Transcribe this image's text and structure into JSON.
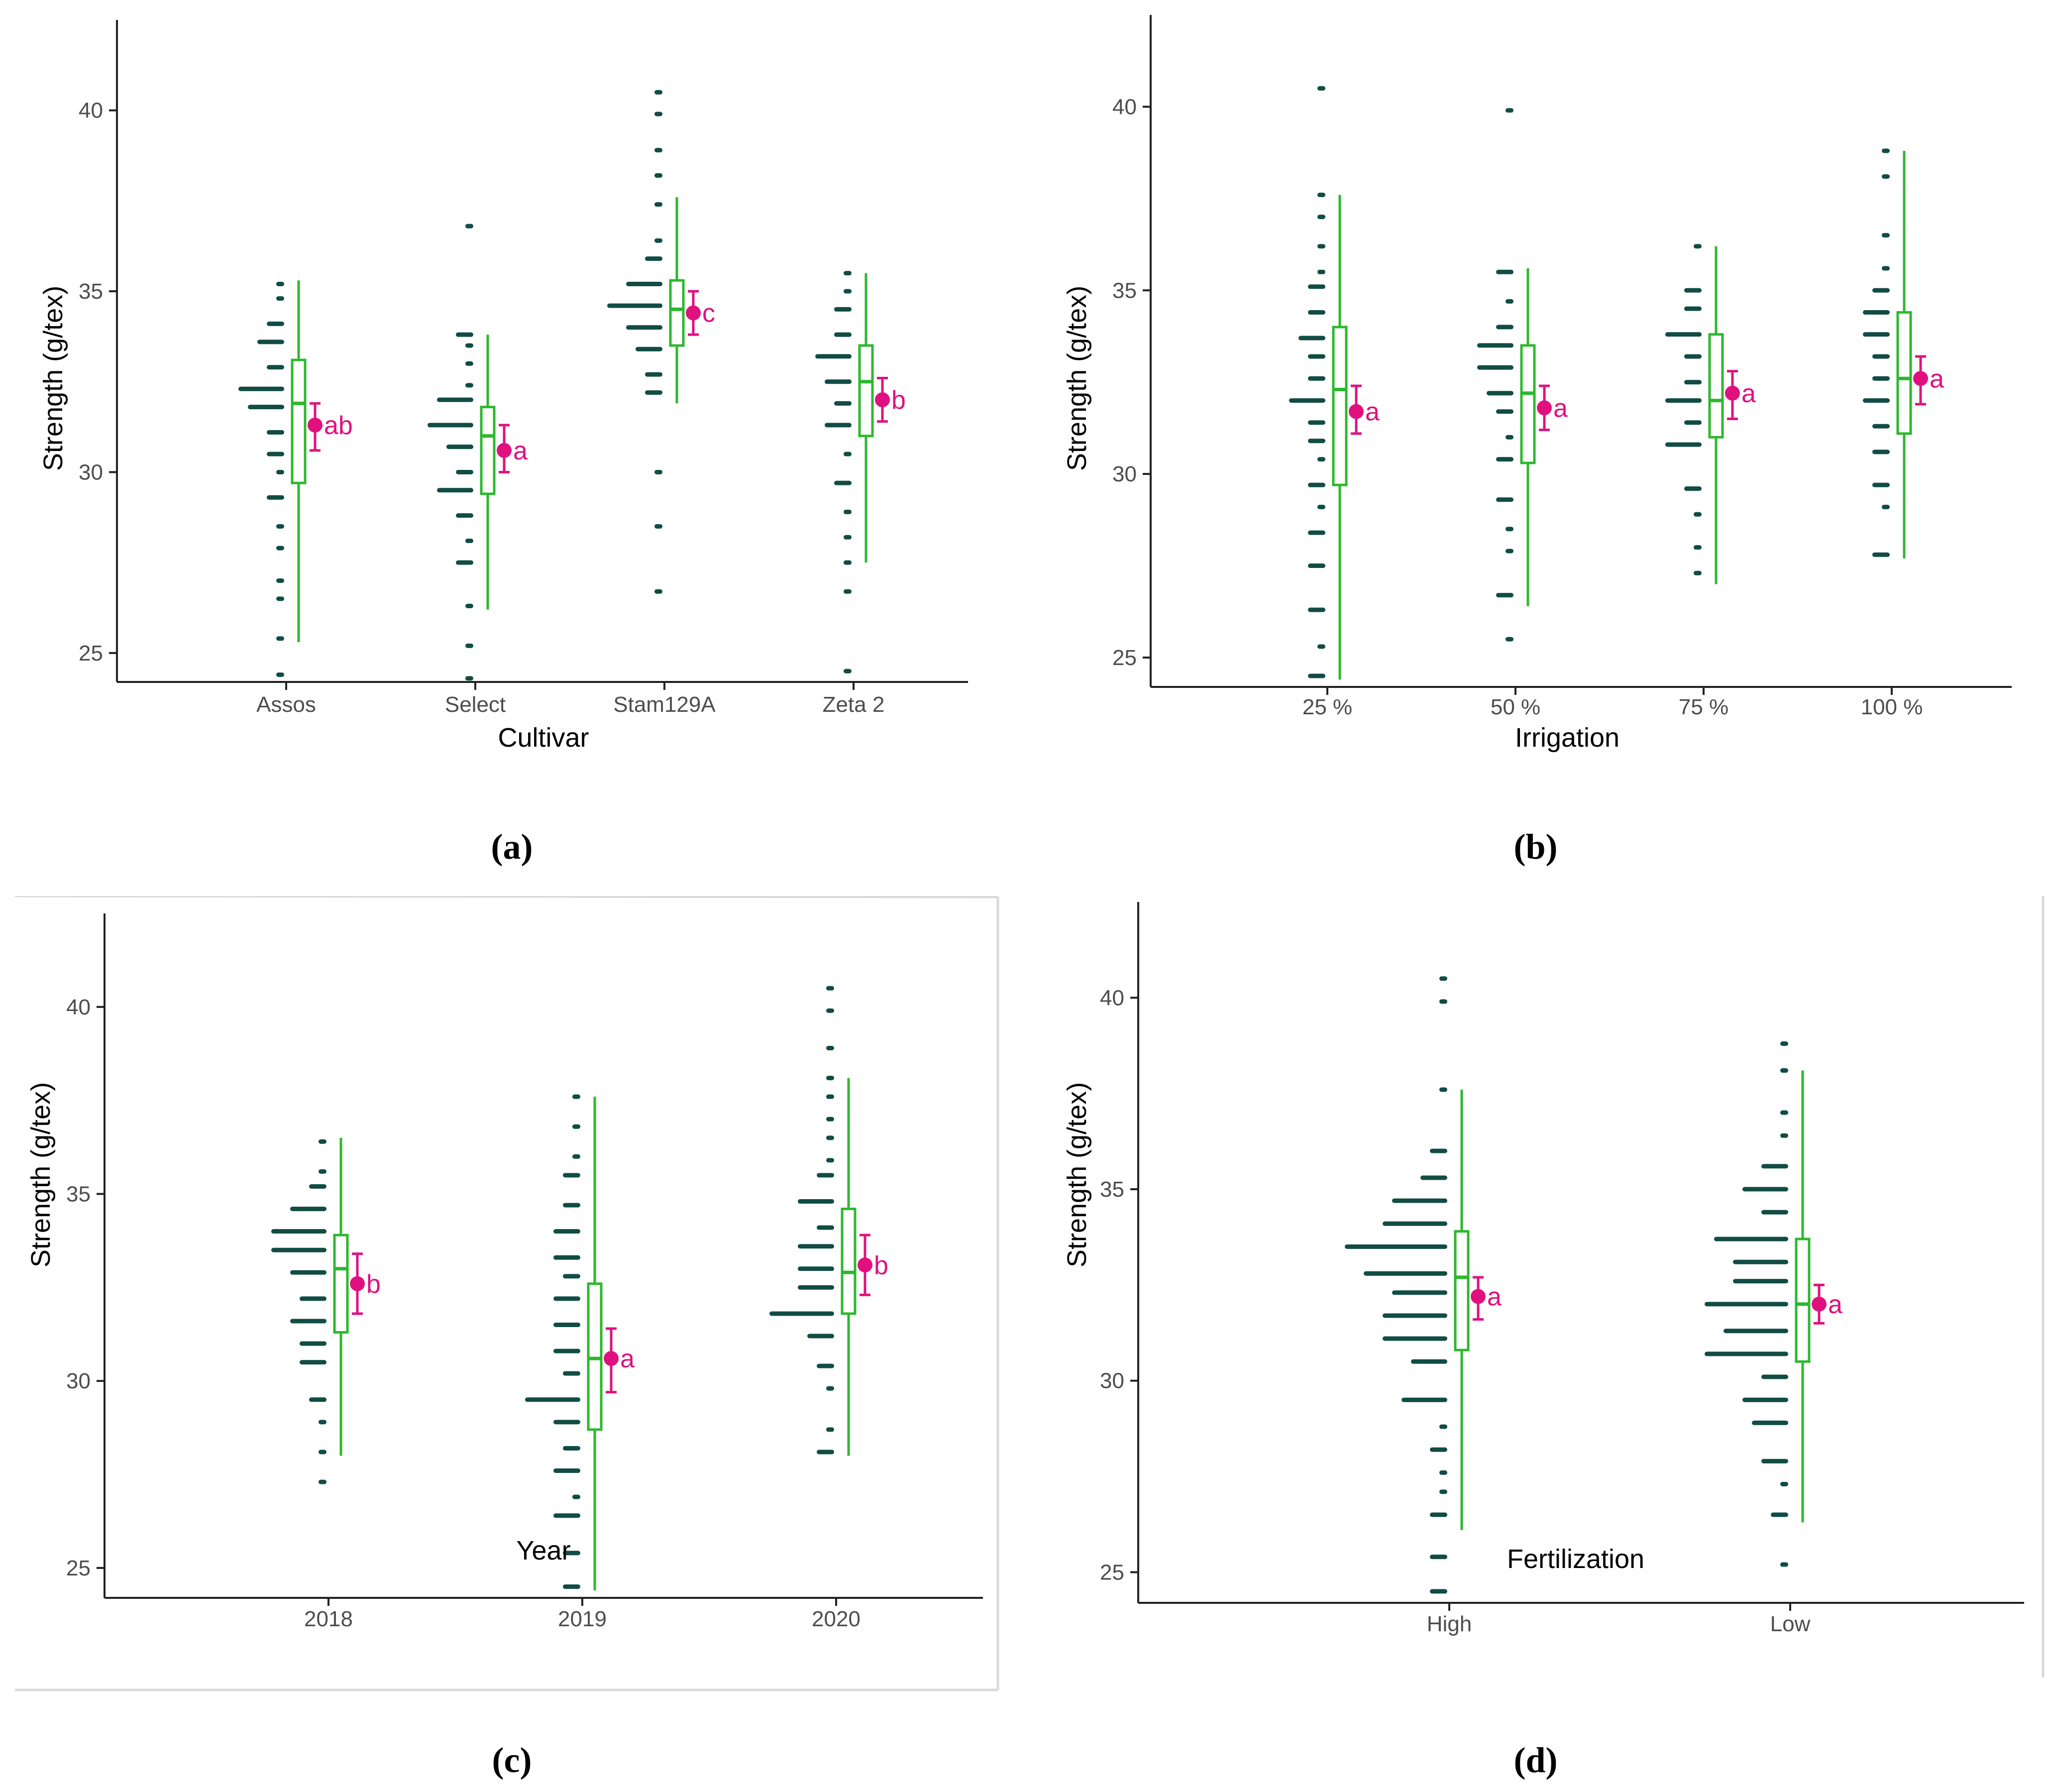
{
  "colors": {
    "dots": "#114d44",
    "box": "#2db82d",
    "mean": "#e0117f",
    "axis": "#222222"
  },
  "chart_data": [
    {
      "type": "raincloud",
      "panel": "a",
      "caption": "(a)",
      "xlabel": "Cultivar",
      "ylabel": "Strength (g/tex)",
      "ylim": [
        24.2,
        42.5
      ],
      "yticks": [
        25,
        30,
        35,
        40
      ],
      "categories": [
        {
          "name": "Assos",
          "median": 31.9,
          "q1": 29.7,
          "q3": 33.1,
          "whisker_low": 25.3,
          "whisker_high": 35.3,
          "mean": 31.3,
          "ci_low": 30.6,
          "ci_high": 31.9,
          "letter": "ab",
          "dots": [
            [
              35.2,
              1
            ],
            [
              34.8,
              1
            ],
            [
              34.1,
              2
            ],
            [
              33.6,
              3
            ],
            [
              32.9,
              2
            ],
            [
              32.3,
              5
            ],
            [
              31.8,
              4
            ],
            [
              31.1,
              2
            ],
            [
              30.5,
              2
            ],
            [
              30.0,
              1
            ],
            [
              29.3,
              2
            ],
            [
              28.5,
              1
            ],
            [
              27.9,
              1
            ],
            [
              27.0,
              1
            ],
            [
              26.5,
              1
            ],
            [
              25.4,
              1
            ],
            [
              24.4,
              1
            ]
          ]
        },
        {
          "name": "Select",
          "median": 31.0,
          "q1": 29.4,
          "q3": 31.8,
          "whisker_low": 26.2,
          "whisker_high": 33.8,
          "mean": 30.6,
          "ci_low": 30.0,
          "ci_high": 31.3,
          "letter": "a",
          "dots": [
            [
              36.8,
              1
            ],
            [
              33.8,
              2
            ],
            [
              33.5,
              1
            ],
            [
              33.0,
              1
            ],
            [
              32.4,
              1
            ],
            [
              32.0,
              4
            ],
            [
              31.3,
              5
            ],
            [
              30.7,
              3
            ],
            [
              30.0,
              2
            ],
            [
              29.5,
              4
            ],
            [
              28.8,
              2
            ],
            [
              28.1,
              1
            ],
            [
              27.5,
              2
            ],
            [
              26.3,
              1
            ],
            [
              25.2,
              1
            ],
            [
              24.3,
              1
            ]
          ]
        },
        {
          "name": "Stam129A",
          "median": 34.5,
          "q1": 33.5,
          "q3": 35.3,
          "whisker_low": 31.9,
          "whisker_high": 37.6,
          "mean": 34.4,
          "ci_low": 33.8,
          "ci_high": 35.0,
          "letter": "c",
          "dots": [
            [
              40.5,
              1
            ],
            [
              39.9,
              1
            ],
            [
              38.9,
              1
            ],
            [
              38.2,
              1
            ],
            [
              37.4,
              1
            ],
            [
              36.4,
              1
            ],
            [
              35.9,
              2
            ],
            [
              35.2,
              4
            ],
            [
              34.6,
              6
            ],
            [
              34.0,
              4
            ],
            [
              33.4,
              3
            ],
            [
              32.7,
              2
            ],
            [
              32.2,
              2
            ],
            [
              30.0,
              1
            ],
            [
              28.5,
              1
            ],
            [
              26.7,
              1
            ]
          ]
        },
        {
          "name": "Zeta 2",
          "median": 32.5,
          "q1": 31.0,
          "q3": 33.5,
          "whisker_low": 27.5,
          "whisker_high": 35.5,
          "mean": 32.0,
          "ci_low": 31.4,
          "ci_high": 32.6,
          "letter": "b",
          "dots": [
            [
              35.5,
              1
            ],
            [
              35.0,
              1
            ],
            [
              34.5,
              2
            ],
            [
              33.8,
              2
            ],
            [
              33.2,
              4
            ],
            [
              32.5,
              3
            ],
            [
              31.9,
              2
            ],
            [
              31.3,
              3
            ],
            [
              30.5,
              1
            ],
            [
              29.7,
              2
            ],
            [
              28.9,
              1
            ],
            [
              28.2,
              1
            ],
            [
              27.5,
              1
            ],
            [
              26.7,
              1
            ],
            [
              24.5,
              1
            ]
          ]
        }
      ]
    },
    {
      "type": "raincloud",
      "panel": "b",
      "caption": "(b)",
      "xlabel": "Irrigation",
      "ylabel": "Strength (g/tex)",
      "ylim": [
        24.2,
        42.5
      ],
      "yticks": [
        25,
        30,
        35,
        40
      ],
      "categories": [
        {
          "name": "25 %",
          "median": 32.3,
          "q1": 29.7,
          "q3": 34.0,
          "whisker_low": 24.4,
          "whisker_high": 37.6,
          "mean": 31.7,
          "ci_low": 31.1,
          "ci_high": 32.4,
          "letter": "a",
          "dots": [
            [
              40.5,
              1
            ],
            [
              37.6,
              1
            ],
            [
              37.0,
              1
            ],
            [
              36.2,
              1
            ],
            [
              35.5,
              1
            ],
            [
              35.1,
              2
            ],
            [
              34.4,
              2
            ],
            [
              33.7,
              3
            ],
            [
              33.2,
              2
            ],
            [
              32.6,
              2
            ],
            [
              32.0,
              4
            ],
            [
              31.4,
              2
            ],
            [
              30.9,
              2
            ],
            [
              30.4,
              1
            ],
            [
              29.7,
              2
            ],
            [
              29.1,
              1
            ],
            [
              28.4,
              2
            ],
            [
              27.5,
              2
            ],
            [
              26.3,
              2
            ],
            [
              25.3,
              1
            ],
            [
              24.5,
              2
            ]
          ]
        },
        {
          "name": "50 %",
          "median": 32.2,
          "q1": 30.3,
          "q3": 33.5,
          "whisker_low": 26.4,
          "whisker_high": 35.6,
          "mean": 31.8,
          "ci_low": 31.2,
          "ci_high": 32.4,
          "letter": "a",
          "dots": [
            [
              39.9,
              1
            ],
            [
              35.5,
              2
            ],
            [
              34.7,
              1
            ],
            [
              34.0,
              2
            ],
            [
              33.5,
              4
            ],
            [
              32.9,
              4
            ],
            [
              32.2,
              3
            ],
            [
              31.7,
              2
            ],
            [
              31.0,
              1
            ],
            [
              30.4,
              2
            ],
            [
              29.3,
              2
            ],
            [
              28.5,
              1
            ],
            [
              27.9,
              1
            ],
            [
              26.7,
              2
            ],
            [
              25.5,
              1
            ]
          ]
        },
        {
          "name": "75 %",
          "median": 32.0,
          "q1": 31.0,
          "q3": 33.8,
          "whisker_low": 27.0,
          "whisker_high": 36.2,
          "mean": 32.2,
          "ci_low": 31.5,
          "ci_high": 32.8,
          "letter": "a",
          "dots": [
            [
              36.2,
              1
            ],
            [
              35.0,
              2
            ],
            [
              34.5,
              2
            ],
            [
              33.8,
              4
            ],
            [
              33.2,
              2
            ],
            [
              32.5,
              2
            ],
            [
              32.0,
              4
            ],
            [
              31.4,
              2
            ],
            [
              30.8,
              4
            ],
            [
              29.6,
              2
            ],
            [
              28.9,
              1
            ],
            [
              28.0,
              1
            ],
            [
              27.3,
              1
            ]
          ]
        },
        {
          "name": "100 %",
          "median": 32.6,
          "q1": 31.1,
          "q3": 34.4,
          "whisker_low": 27.7,
          "whisker_high": 38.8,
          "mean": 32.6,
          "ci_low": 31.9,
          "ci_high": 33.2,
          "letter": "a",
          "dots": [
            [
              38.8,
              1
            ],
            [
              38.1,
              1
            ],
            [
              36.5,
              1
            ],
            [
              35.6,
              1
            ],
            [
              35.0,
              2
            ],
            [
              34.4,
              3
            ],
            [
              33.8,
              3
            ],
            [
              33.2,
              2
            ],
            [
              32.6,
              2
            ],
            [
              32.0,
              3
            ],
            [
              31.3,
              2
            ],
            [
              30.6,
              2
            ],
            [
              29.7,
              2
            ],
            [
              29.1,
              1
            ],
            [
              27.8,
              2
            ]
          ]
        }
      ]
    },
    {
      "type": "raincloud",
      "panel": "c",
      "caption": "(c)",
      "xlabel": "Year",
      "ylabel": "Strength (g/tex)",
      "ylim": [
        24.2,
        42.5
      ],
      "yticks": [
        25,
        30,
        35,
        40
      ],
      "categories": [
        {
          "name": "2018",
          "median": 33.0,
          "q1": 31.3,
          "q3": 33.9,
          "whisker_low": 28.0,
          "whisker_high": 36.5,
          "mean": 32.6,
          "ci_low": 31.8,
          "ci_high": 33.4,
          "letter": "b",
          "dots": [
            [
              36.4,
              1
            ],
            [
              35.6,
              1
            ],
            [
              35.2,
              2
            ],
            [
              34.6,
              4
            ],
            [
              34.0,
              6
            ],
            [
              33.5,
              6
            ],
            [
              32.9,
              4
            ],
            [
              32.2,
              3
            ],
            [
              31.6,
              4
            ],
            [
              31.0,
              3
            ],
            [
              30.5,
              3
            ],
            [
              29.5,
              2
            ],
            [
              28.9,
              1
            ],
            [
              28.1,
              1
            ],
            [
              27.3,
              1
            ]
          ]
        },
        {
          "name": "2019",
          "median": 30.6,
          "q1": 28.7,
          "q3": 32.6,
          "whisker_low": 24.4,
          "whisker_high": 37.6,
          "mean": 30.6,
          "ci_low": 29.7,
          "ci_high": 31.4,
          "letter": "a",
          "dots": [
            [
              37.6,
              1
            ],
            [
              36.8,
              1
            ],
            [
              36.0,
              1
            ],
            [
              35.5,
              2
            ],
            [
              34.7,
              2
            ],
            [
              34.0,
              3
            ],
            [
              33.3,
              3
            ],
            [
              32.8,
              2
            ],
            [
              32.2,
              3
            ],
            [
              31.5,
              3
            ],
            [
              30.8,
              3
            ],
            [
              30.2,
              2
            ],
            [
              29.5,
              6
            ],
            [
              28.9,
              3
            ],
            [
              28.2,
              2
            ],
            [
              27.6,
              3
            ],
            [
              26.9,
              1
            ],
            [
              26.4,
              3
            ],
            [
              25.4,
              2
            ],
            [
              24.5,
              2
            ]
          ]
        },
        {
          "name": "2020",
          "median": 32.9,
          "q1": 31.8,
          "q3": 34.6,
          "whisker_low": 28.0,
          "whisker_high": 38.1,
          "mean": 33.1,
          "ci_low": 32.3,
          "ci_high": 33.9,
          "letter": "b",
          "dots": [
            [
              40.5,
              1
            ],
            [
              39.9,
              1
            ],
            [
              38.9,
              1
            ],
            [
              38.1,
              1
            ],
            [
              37.6,
              1
            ],
            [
              37.0,
              1
            ],
            [
              36.5,
              1
            ],
            [
              35.9,
              1
            ],
            [
              35.5,
              2
            ],
            [
              34.8,
              4
            ],
            [
              34.1,
              2
            ],
            [
              33.6,
              4
            ],
            [
              33.0,
              4
            ],
            [
              32.5,
              4
            ],
            [
              31.8,
              7
            ],
            [
              31.2,
              3
            ],
            [
              30.4,
              2
            ],
            [
              29.8,
              1
            ],
            [
              28.7,
              1
            ],
            [
              28.1,
              2
            ]
          ]
        }
      ]
    },
    {
      "type": "raincloud",
      "panel": "d",
      "caption": "(d)",
      "xlabel": "Fertilization",
      "ylabel": "Strength (g/tex)",
      "ylim": [
        24.2,
        42.5
      ],
      "yticks": [
        25,
        30,
        35,
        40
      ],
      "categories": [
        {
          "name": "High",
          "median": 32.7,
          "q1": 30.8,
          "q3": 33.9,
          "whisker_low": 26.1,
          "whisker_high": 37.6,
          "mean": 32.2,
          "ci_low": 31.6,
          "ci_high": 32.7,
          "letter": "a",
          "dots": [
            [
              40.5,
              1
            ],
            [
              39.9,
              1
            ],
            [
              37.6,
              1
            ],
            [
              36.0,
              2
            ],
            [
              35.3,
              3
            ],
            [
              34.7,
              6
            ],
            [
              34.1,
              7
            ],
            [
              33.5,
              11
            ],
            [
              32.8,
              9
            ],
            [
              32.3,
              6
            ],
            [
              31.7,
              7
            ],
            [
              31.1,
              7
            ],
            [
              30.5,
              4
            ],
            [
              29.5,
              5
            ],
            [
              28.8,
              1
            ],
            [
              28.2,
              2
            ],
            [
              27.6,
              1
            ],
            [
              27.1,
              1
            ],
            [
              26.5,
              2
            ],
            [
              25.4,
              2
            ],
            [
              24.5,
              2
            ]
          ]
        },
        {
          "name": "Low",
          "median": 32.0,
          "q1": 30.5,
          "q3": 33.7,
          "whisker_low": 26.3,
          "whisker_high": 38.1,
          "mean": 32.0,
          "ci_low": 31.5,
          "ci_high": 32.5,
          "letter": "a",
          "dots": [
            [
              38.8,
              1
            ],
            [
              38.1,
              1
            ],
            [
              37.0,
              1
            ],
            [
              36.4,
              1
            ],
            [
              35.6,
              3
            ],
            [
              35.0,
              5
            ],
            [
              34.4,
              3
            ],
            [
              33.7,
              8
            ],
            [
              33.1,
              6
            ],
            [
              32.6,
              6
            ],
            [
              32.0,
              9
            ],
            [
              31.3,
              7
            ],
            [
              30.7,
              9
            ],
            [
              30.1,
              3
            ],
            [
              29.5,
              5
            ],
            [
              28.9,
              4
            ],
            [
              27.9,
              3
            ],
            [
              27.3,
              1
            ],
            [
              26.5,
              2
            ],
            [
              25.2,
              1
            ]
          ]
        }
      ]
    }
  ]
}
